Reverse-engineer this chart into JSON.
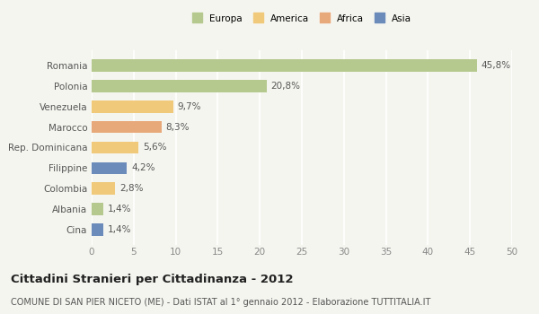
{
  "categories": [
    "Romania",
    "Polonia",
    "Venezuela",
    "Marocco",
    "Rep. Dominicana",
    "Filippine",
    "Colombia",
    "Albania",
    "Cina"
  ],
  "values": [
    45.8,
    20.8,
    9.7,
    8.3,
    5.6,
    4.2,
    2.8,
    1.4,
    1.4
  ],
  "labels": [
    "45,8%",
    "20,8%",
    "9,7%",
    "8,3%",
    "5,6%",
    "4,2%",
    "2,8%",
    "1,4%",
    "1,4%"
  ],
  "colors": [
    "#b5c98e",
    "#b5c98e",
    "#f0c97a",
    "#e8a97a",
    "#f0c97a",
    "#6b8cba",
    "#f0c97a",
    "#b5c98e",
    "#6b8cba"
  ],
  "legend_labels": [
    "Europa",
    "America",
    "Africa",
    "Asia"
  ],
  "legend_colors": [
    "#b5c98e",
    "#f0c97a",
    "#e8a97a",
    "#6b8cba"
  ],
  "xlim": [
    0,
    50
  ],
  "xticks": [
    0,
    5,
    10,
    15,
    20,
    25,
    30,
    35,
    40,
    45,
    50
  ],
  "title": "Cittadini Stranieri per Cittadinanza - 2012",
  "subtitle": "COMUNE DI SAN PIER NICETO (ME) - Dati ISTAT al 1° gennaio 2012 - Elaborazione TUTTITALIA.IT",
  "bg_color": "#f5f5f0",
  "bar_height": 0.6,
  "grid_color": "#ffffff",
  "label_fontsize": 7.5,
  "tick_fontsize": 7.5,
  "title_fontsize": 9.5,
  "subtitle_fontsize": 7.0
}
